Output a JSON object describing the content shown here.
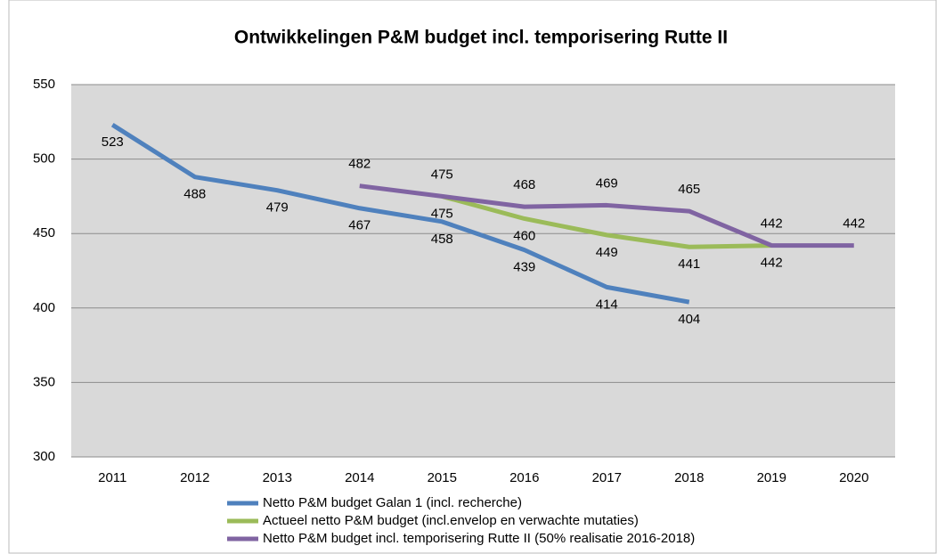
{
  "chart_data": {
    "type": "line",
    "title": "Ontwikkelingen P&M budget incl. temporisering Rutte II",
    "categories": [
      "2011",
      "2012",
      "2013",
      "2014",
      "2015",
      "2016",
      "2017",
      "2018",
      "2019",
      "2020"
    ],
    "series": [
      {
        "name": "Netto P&M budget Galan 1 (incl. recherche)",
        "color": "#4f81bd",
        "values": [
          523,
          488,
          479,
          467,
          458,
          439,
          414,
          404,
          null,
          null
        ]
      },
      {
        "name": "Actueel netto P&M budget (incl.envelop en verwachte mutaties)",
        "color": "#9bbb59",
        "values": [
          null,
          null,
          null,
          null,
          475,
          460,
          449,
          441,
          442,
          null
        ]
      },
      {
        "name": "Netto P&M budget incl. temporisering Rutte II (50% realisatie 2016-2018)",
        "color": "#8064a2",
        "values": [
          null,
          null,
          null,
          482,
          475,
          468,
          469,
          465,
          442,
          442
        ]
      }
    ],
    "ylim": [
      300,
      550
    ],
    "yticks": [
      300,
      350,
      400,
      450,
      500,
      550
    ],
    "grid": true,
    "legend": "bottom"
  }
}
